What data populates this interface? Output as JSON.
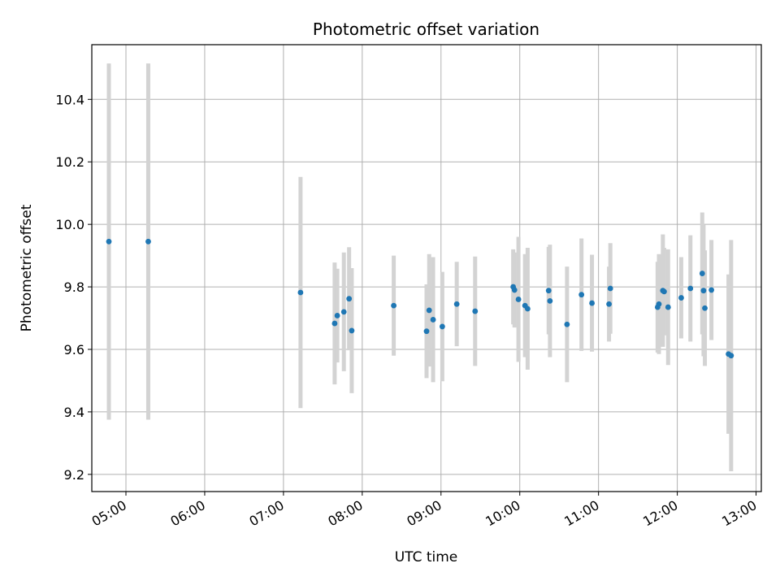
{
  "chart_data": {
    "type": "scatter",
    "title": "Photometric offset variation",
    "xlabel": "UTC time",
    "ylabel": "Photometric offset",
    "x_tick_labels": [
      "05:00",
      "06:00",
      "07:00",
      "08:00",
      "09:00",
      "10:00",
      "11:00",
      "12:00",
      "13:00"
    ],
    "y_tick_labels": [
      "9.2",
      "9.4",
      "9.6",
      "9.8",
      "10.0",
      "10.2",
      "10.4"
    ],
    "xlim": [
      "04:34",
      "13:04"
    ],
    "ylim": [
      9.145,
      10.575
    ],
    "grid": true,
    "errorbar_color": "#d3d3d3",
    "marker_color": "#1f77b4",
    "points": [
      {
        "t": "04:47",
        "y": 9.945,
        "err": 0.57
      },
      {
        "t": "05:17",
        "y": 9.945,
        "err": 0.57
      },
      {
        "t": "07:13",
        "y": 9.782,
        "err": 0.37
      },
      {
        "t": "07:39",
        "y": 9.683,
        "err": 0.195
      },
      {
        "t": "07:41",
        "y": 9.708,
        "err": 0.15
      },
      {
        "t": "07:46",
        "y": 9.72,
        "err": 0.19
      },
      {
        "t": "07:50",
        "y": 9.762,
        "err": 0.165
      },
      {
        "t": "07:52",
        "y": 9.66,
        "err": 0.2
      },
      {
        "t": "08:24",
        "y": 9.74,
        "err": 0.16
      },
      {
        "t": "08:49",
        "y": 9.658,
        "err": 0.15
      },
      {
        "t": "08:51",
        "y": 9.725,
        "err": 0.18
      },
      {
        "t": "08:54",
        "y": 9.695,
        "err": 0.2
      },
      {
        "t": "09:01",
        "y": 9.673,
        "err": 0.175
      },
      {
        "t": "09:12",
        "y": 9.745,
        "err": 0.135
      },
      {
        "t": "09:26",
        "y": 9.722,
        "err": 0.175
      },
      {
        "t": "09:55",
        "y": 9.8,
        "err": 0.12
      },
      {
        "t": "09:56",
        "y": 9.79,
        "err": 0.12
      },
      {
        "t": "09:59",
        "y": 9.76,
        "err": 0.2
      },
      {
        "t": "10:04",
        "y": 9.74,
        "err": 0.165
      },
      {
        "t": "10:06",
        "y": 9.73,
        "err": 0.195
      },
      {
        "t": "10:22",
        "y": 9.788,
        "err": 0.14
      },
      {
        "t": "10:23",
        "y": 9.755,
        "err": 0.18
      },
      {
        "t": "10:36",
        "y": 9.68,
        "err": 0.185
      },
      {
        "t": "10:47",
        "y": 9.775,
        "err": 0.18
      },
      {
        "t": "10:55",
        "y": 9.748,
        "err": 0.155
      },
      {
        "t": "11:08",
        "y": 9.745,
        "err": 0.12
      },
      {
        "t": "11:09",
        "y": 9.795,
        "err": 0.145
      },
      {
        "t": "11:45",
        "y": 9.735,
        "err": 0.145
      },
      {
        "t": "11:46",
        "y": 9.745,
        "err": 0.16
      },
      {
        "t": "11:49",
        "y": 9.788,
        "err": 0.18
      },
      {
        "t": "11:50",
        "y": 9.785,
        "err": 0.14
      },
      {
        "t": "11:53",
        "y": 9.735,
        "err": 0.185
      },
      {
        "t": "12:03",
        "y": 9.765,
        "err": 0.13
      },
      {
        "t": "12:10",
        "y": 9.795,
        "err": 0.17
      },
      {
        "t": "12:19",
        "y": 9.843,
        "err": 0.195
      },
      {
        "t": "12:20",
        "y": 9.788,
        "err": 0.21
      },
      {
        "t": "12:21",
        "y": 9.732,
        "err": 0.185
      },
      {
        "t": "12:26",
        "y": 9.79,
        "err": 0.16
      },
      {
        "t": "12:39",
        "y": 9.585,
        "err": 0.255
      },
      {
        "t": "12:41",
        "y": 9.58,
        "err": 0.37
      }
    ]
  }
}
